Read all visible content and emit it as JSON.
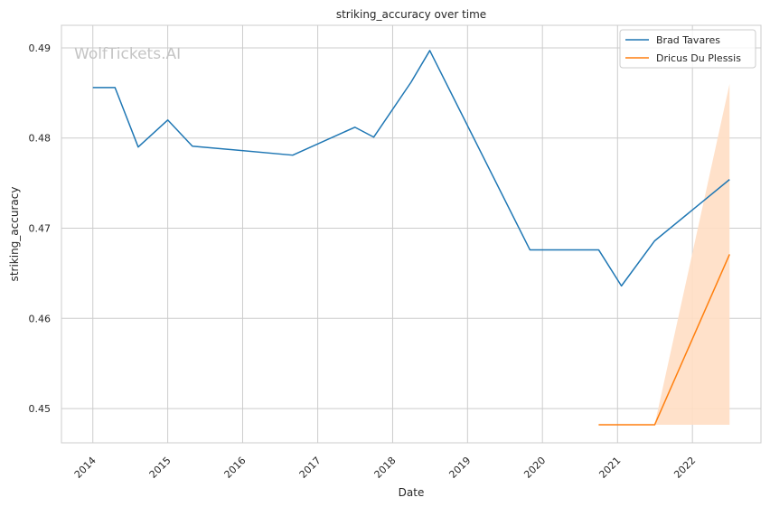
{
  "chart_data": {
    "type": "line",
    "title": "striking_accuracy over time",
    "xlabel": "Date",
    "ylabel": "striking_accuracy",
    "watermark": "WolfTickets.AI",
    "grid": true,
    "legend_position": "top-right",
    "xlim": [
      "2013-08-01",
      "2022-12-01"
    ],
    "ylim": [
      0.4462,
      0.4925
    ],
    "x_ticks": [
      "2014",
      "2015",
      "2016",
      "2017",
      "2018",
      "2019",
      "2020",
      "2021",
      "2022"
    ],
    "y_ticks": [
      "0.45",
      "0.46",
      "0.47",
      "0.48",
      "0.49"
    ],
    "series": [
      {
        "name": "Brad Tavares",
        "color": "#1f77b4",
        "points": [
          {
            "x": "2014-01-01",
            "y": 0.4856
          },
          {
            "x": "2014-04-19",
            "y": 0.4856
          },
          {
            "x": "2014-08-10",
            "y": 0.479
          },
          {
            "x": "2015-01-01",
            "y": 0.482
          },
          {
            "x": "2015-05-01",
            "y": 0.4791
          },
          {
            "x": "2016-09-01",
            "y": 0.4781
          },
          {
            "x": "2017-07-01",
            "y": 0.4812
          },
          {
            "x": "2017-10-01",
            "y": 0.4801
          },
          {
            "x": "2018-04-01",
            "y": 0.4862
          },
          {
            "x": "2018-07-01",
            "y": 0.4897
          },
          {
            "x": "2019-11-01",
            "y": 0.4676
          },
          {
            "x": "2020-10-01",
            "y": 0.4676
          },
          {
            "x": "2021-01-20",
            "y": 0.4636
          },
          {
            "x": "2021-07-01",
            "y": 0.4686
          },
          {
            "x": "2022-07-01",
            "y": 0.4754
          }
        ]
      },
      {
        "name": "Dricus Du Plessis",
        "color": "#ff7f0e",
        "band_color": "#ffdec4",
        "points": [
          {
            "x": "2020-10-01",
            "y": 0.4482
          },
          {
            "x": "2021-07-01",
            "y": 0.4482
          },
          {
            "x": "2022-07-01",
            "y": 0.4671
          }
        ],
        "band": [
          {
            "x": "2021-07-01",
            "low": 0.4482,
            "high": 0.4482
          },
          {
            "x": "2022-07-01",
            "low": 0.4482,
            "high": 0.486
          }
        ]
      }
    ]
  }
}
